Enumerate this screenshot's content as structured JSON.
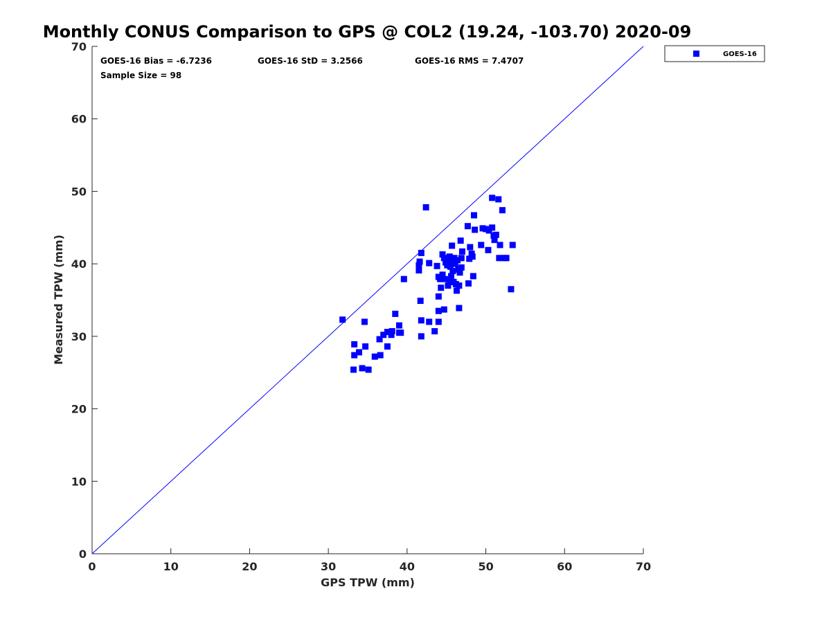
{
  "chart_data": {
    "type": "scatter",
    "title": "Monthly CONUS Comparison to GPS @ COL2 (19.24, -103.70) 2020-09",
    "xlabel": "GPS TPW (mm)",
    "ylabel": "Measured TPW (mm)",
    "xlim": [
      0,
      70
    ],
    "ylim": [
      0,
      70
    ],
    "xticks": [
      "0",
      "10",
      "20",
      "30",
      "40",
      "50",
      "60",
      "70"
    ],
    "yticks": [
      "0",
      "10",
      "20",
      "30",
      "40",
      "50",
      "60",
      "70"
    ],
    "grid": false,
    "legend_position": "outside top-right",
    "stats": {
      "bias": "GOES-16 Bias = -6.7236",
      "std": "GOES-16 StD = 3.2566",
      "rms": "GOES-16 RMS = 7.4707",
      "sample_size": "Sample Size = 98"
    },
    "reference_line": {
      "x": [
        0,
        70
      ],
      "y": [
        0,
        70
      ],
      "color": "#0000ff"
    },
    "series": [
      {
        "name": "GOES-16",
        "color": "#0000ff",
        "marker": "square",
        "points": [
          [
            31.8,
            32.3
          ],
          [
            33.2,
            25.4
          ],
          [
            33.3,
            27.4
          ],
          [
            33.3,
            28.9
          ],
          [
            33.9,
            27.8
          ],
          [
            34.3,
            25.6
          ],
          [
            34.6,
            32.0
          ],
          [
            34.7,
            28.6
          ],
          [
            35.1,
            25.4
          ],
          [
            35.9,
            27.2
          ],
          [
            36.5,
            29.6
          ],
          [
            36.6,
            27.4
          ],
          [
            37.0,
            30.2
          ],
          [
            37.5,
            28.6
          ],
          [
            37.5,
            30.6
          ],
          [
            38.0,
            30.2
          ],
          [
            38.1,
            30.7
          ],
          [
            38.5,
            33.1
          ],
          [
            39.0,
            31.5
          ],
          [
            39.0,
            30.5
          ],
          [
            39.2,
            30.5
          ],
          [
            39.6,
            37.9
          ],
          [
            41.5,
            39.1
          ],
          [
            41.5,
            39.8
          ],
          [
            41.6,
            40.3
          ],
          [
            41.7,
            34.9
          ],
          [
            41.8,
            41.5
          ],
          [
            41.8,
            32.2
          ],
          [
            41.8,
            30.0
          ],
          [
            42.4,
            47.8
          ],
          [
            42.8,
            40.1
          ],
          [
            42.8,
            32.0
          ],
          [
            43.5,
            30.7
          ],
          [
            43.8,
            39.7
          ],
          [
            44.0,
            38.2
          ],
          [
            44.0,
            35.5
          ],
          [
            44.0,
            33.5
          ],
          [
            44.0,
            32.0
          ],
          [
            44.2,
            37.9
          ],
          [
            44.3,
            36.7
          ],
          [
            44.5,
            41.3
          ],
          [
            44.5,
            38.5
          ],
          [
            44.7,
            40.8
          ],
          [
            44.7,
            33.7
          ],
          [
            44.8,
            37.9
          ],
          [
            44.9,
            40.2
          ],
          [
            45.1,
            39.8
          ],
          [
            45.2,
            37.0
          ],
          [
            45.3,
            40.5
          ],
          [
            45.4,
            41.0
          ],
          [
            45.4,
            37.5
          ],
          [
            45.5,
            39.6
          ],
          [
            45.6,
            40.8
          ],
          [
            45.6,
            38.3
          ],
          [
            45.7,
            42.5
          ],
          [
            45.7,
            40.2
          ],
          [
            45.8,
            39.0
          ],
          [
            45.9,
            37.5
          ],
          [
            46.0,
            40.8
          ],
          [
            46.1,
            40.0
          ],
          [
            46.2,
            37.2
          ],
          [
            46.3,
            36.3
          ],
          [
            46.4,
            40.5
          ],
          [
            46.5,
            39.2
          ],
          [
            46.6,
            37.0
          ],
          [
            46.6,
            33.9
          ],
          [
            46.7,
            38.8
          ],
          [
            46.8,
            43.2
          ],
          [
            46.9,
            40.8
          ],
          [
            46.9,
            39.5
          ],
          [
            47.0,
            41.7
          ],
          [
            47.7,
            45.2
          ],
          [
            47.8,
            37.3
          ],
          [
            47.9,
            40.7
          ],
          [
            48.0,
            42.3
          ],
          [
            48.2,
            41.4
          ],
          [
            48.3,
            41.0
          ],
          [
            48.4,
            38.3
          ],
          [
            48.5,
            46.7
          ],
          [
            48.6,
            44.7
          ],
          [
            49.4,
            42.6
          ],
          [
            49.6,
            44.9
          ],
          [
            50.0,
            44.8
          ],
          [
            50.3,
            41.9
          ],
          [
            50.4,
            44.6
          ],
          [
            50.8,
            49.1
          ],
          [
            50.8,
            45.0
          ],
          [
            51.0,
            43.9
          ],
          [
            51.1,
            43.3
          ],
          [
            51.3,
            44.0
          ],
          [
            51.6,
            48.9
          ],
          [
            51.7,
            40.8
          ],
          [
            51.8,
            42.6
          ],
          [
            52.1,
            47.4
          ],
          [
            52.3,
            40.8
          ],
          [
            52.6,
            40.8
          ],
          [
            53.2,
            36.5
          ],
          [
            53.4,
            42.6
          ]
        ]
      }
    ]
  }
}
